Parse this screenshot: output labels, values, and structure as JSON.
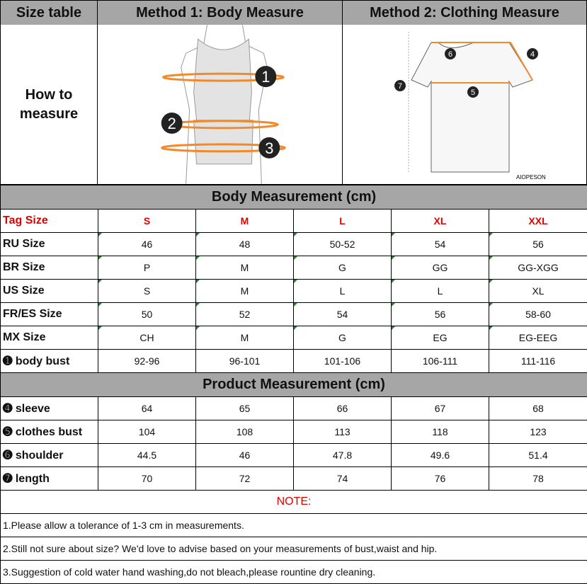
{
  "header": {
    "size_table": "Size table",
    "method1": "Method 1: Body  Measure",
    "method2": "Method 2: Clothing Measure",
    "how_to": "How to measure",
    "brand": "AIOPESON"
  },
  "markers": {
    "m1": "1",
    "m2": "2",
    "m3": "3",
    "m4": "4",
    "m5": "5",
    "m6": "6",
    "m7": "7"
  },
  "colors": {
    "accent_orange": "#f08a2c",
    "header_gray": "#a6a6a6",
    "tag_red": "#e00000"
  },
  "body_section": "Body Measurement (cm)",
  "product_section": "Product Measurement (cm)",
  "body_rows": [
    {
      "label": "Tag Size",
      "values": [
        "S",
        "M",
        "L",
        "XL",
        "XXL"
      ]
    },
    {
      "label": "RU Size",
      "values": [
        "46",
        "48",
        "50-52",
        "54",
        "56"
      ]
    },
    {
      "label": "BR Size",
      "values": [
        "P",
        "M",
        "G",
        "GG",
        "GG-XGG"
      ]
    },
    {
      "label": "US Size",
      "values": [
        "S",
        "M",
        "L",
        "L",
        "XL"
      ]
    },
    {
      "label": "FR/ES Size",
      "values": [
        "50",
        "52",
        "54",
        "56",
        "58-60"
      ]
    },
    {
      "label": "MX Size",
      "values": [
        "CH",
        "M",
        "G",
        "EG",
        "EG-EEG"
      ]
    },
    {
      "label": "➊ body bust",
      "values": [
        "92-96",
        "96-101",
        "101-106",
        "106-111",
        "111-116"
      ]
    }
  ],
  "product_rows": [
    {
      "label": "➍ sleeve",
      "values": [
        "64",
        "65",
        "66",
        "67",
        "68"
      ]
    },
    {
      "label": "➎ clothes bust",
      "values": [
        "104",
        "108",
        "113",
        "118",
        "123"
      ]
    },
    {
      "label": "➏ shoulder",
      "values": [
        "44.5",
        "46",
        "47.8",
        "49.6",
        "51.4"
      ]
    },
    {
      "label": "➐ length",
      "values": [
        "70",
        "72",
        "74",
        "76",
        "78"
      ]
    }
  ],
  "note": {
    "title": "NOTE:",
    "lines": [
      "1.Please allow a tolerance of 1-3 cm in measurements.",
      "2.Still not sure about size? We'd love to advise based on your measurements of bust,waist and hip.",
      "3.Suggestion of cold water hand washing,do not bleach,please rountine dry cleaning."
    ]
  }
}
